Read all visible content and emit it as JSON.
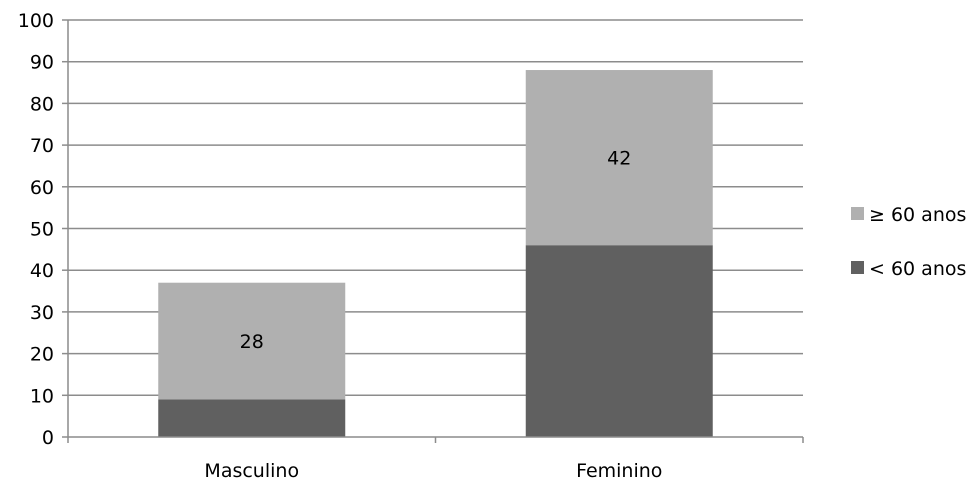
{
  "chart_data": {
    "type": "bar",
    "stacked": true,
    "categories": [
      "Masculino",
      "Feminino"
    ],
    "series": [
      {
        "name": "< 60 anos",
        "values": [
          9,
          46
        ],
        "color": "#606060"
      },
      {
        "name": "≥ 60 anos",
        "values": [
          28,
          42
        ],
        "color": "#b0b0b0"
      }
    ],
    "data_labels": [
      {
        "series": 1,
        "category": 0,
        "text": "28"
      },
      {
        "series": 1,
        "category": 1,
        "text": "42"
      }
    ],
    "yticks": [
      "0",
      "10",
      "20",
      "30",
      "40",
      "50",
      "60",
      "70",
      "80",
      "90",
      "100"
    ],
    "ylim": [
      0,
      100
    ],
    "title": "",
    "xlabel": "",
    "ylabel": "",
    "grid": true,
    "gridline_color": "#8c8c8c",
    "legend": {
      "placement": "right",
      "order": [
        1,
        0
      ]
    }
  }
}
